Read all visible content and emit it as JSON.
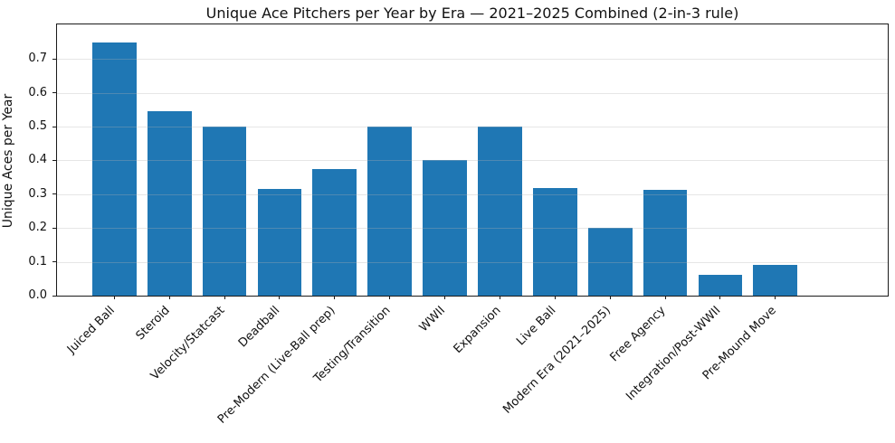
{
  "chart_data": {
    "type": "bar",
    "title": "Unique Ace Pitchers per Year by Era — 2021–2025 Combined (2-in-3 rule)",
    "ylabel": "Unique Aces per Year",
    "xlabel": "",
    "categories": [
      "Juiced Ball",
      "Steroid",
      "Velocity/Statcast",
      "Deadball",
      "Pre-Modern (Live-Ball prep)",
      "Testing/Transition",
      "WWII",
      "Expansion",
      "Live Ball",
      "Modern Era (2021–2025)",
      "Free Agency",
      "Integration/Post-WWII",
      "Pre-Mound Move"
    ],
    "values": [
      0.75,
      0.5455,
      0.5,
      0.3158,
      0.375,
      0.5,
      0.4,
      0.5,
      0.3182,
      0.2,
      0.3125,
      0.0625,
      0.0909
    ],
    "ylim": [
      0,
      0.802
    ],
    "yticks": [
      0.0,
      0.1,
      0.2,
      0.3,
      0.4,
      0.5,
      0.6,
      0.7
    ],
    "ytick_format_decimals": 1,
    "x_tick_rotation": 45,
    "bar_color": "#1f77b4",
    "grid": {
      "axis": "y",
      "color": "#b0b0b0",
      "alpha": 0.3
    },
    "spine_color": "#1a1a1a",
    "background_color": "#ffffff",
    "legend": "none"
  }
}
